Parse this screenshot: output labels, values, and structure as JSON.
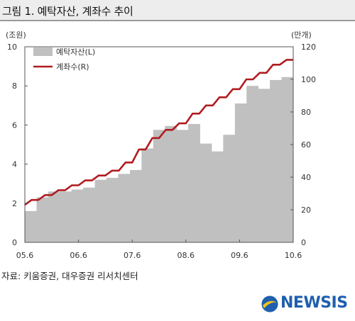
{
  "header": {
    "title": "그림 1. 예탁자산, 계좌수 추이"
  },
  "units": {
    "left": "(조원)",
    "right": "(만개)"
  },
  "source": "자료: 키움증권, 대우증권 리서치센터",
  "logo": {
    "text": "NEWSIS",
    "icon": "newsis-globe-icon"
  },
  "colors": {
    "bars": "#c0c0c0",
    "line": "#b01c20",
    "title_bg": "#ededed"
  },
  "chart_data": {
    "type": "bar+line",
    "x_ticks": [
      "05.6",
      "06.6",
      "07.6",
      "08.6",
      "09.6",
      "10.6"
    ],
    "y_left": {
      "range": [
        0,
        10
      ],
      "ticks": [
        "0",
        "2",
        "4",
        "6",
        "8",
        "10"
      ]
    },
    "y_right": {
      "range": [
        0,
        120
      ],
      "ticks": [
        "0",
        "20",
        "40",
        "60",
        "80",
        "100",
        "120"
      ]
    },
    "legend_placement": "top-left",
    "series": [
      {
        "name": "예탁자산(L)",
        "type": "bar",
        "axis": "left",
        "values": [
          1.6,
          2.3,
          2.6,
          2.6,
          2.7,
          2.8,
          3.2,
          3.3,
          3.5,
          3.7,
          4.8,
          5.75,
          5.95,
          5.75,
          6.05,
          5.05,
          4.65,
          5.5,
          7.1,
          8.0,
          7.85,
          8.3,
          8.45
        ]
      },
      {
        "name": "계좌수(R)",
        "type": "step-line",
        "axis": "right",
        "values": [
          23,
          26,
          26,
          29,
          29,
          32,
          32,
          35,
          35,
          38,
          38,
          41,
          41,
          44,
          44,
          49,
          49,
          57,
          57,
          64,
          64,
          69,
          69,
          73,
          73,
          79,
          79,
          84,
          84,
          89,
          89,
          94,
          94,
          100,
          100,
          104,
          104,
          109,
          109,
          112,
          112
        ]
      }
    ]
  }
}
